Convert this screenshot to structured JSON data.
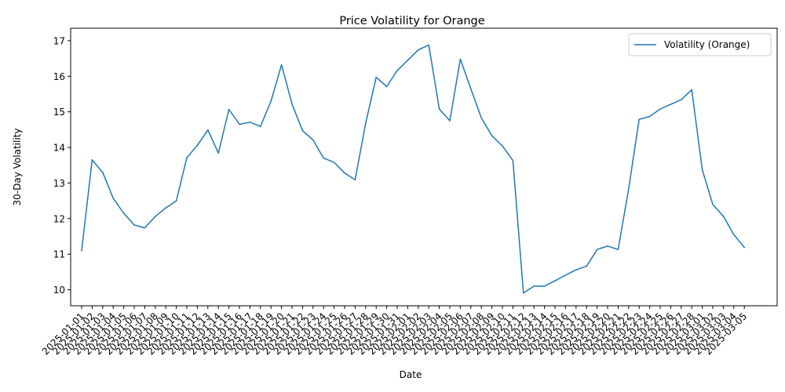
{
  "chart_data": {
    "type": "line",
    "title": "Price Volatility for Orange",
    "xlabel": "Date",
    "ylabel": "30-Day Volatility",
    "ylim": [
      9.55,
      17.35
    ],
    "yticks": [
      10,
      11,
      12,
      13,
      14,
      15,
      16,
      17
    ],
    "grid": false,
    "legend_position": "top-right",
    "x": [
      "2025-01-01",
      "2025-01-02",
      "2025-01-03",
      "2025-01-04",
      "2025-01-05",
      "2025-01-06",
      "2025-01-07",
      "2025-01-08",
      "2025-01-09",
      "2025-01-10",
      "2025-01-11",
      "2025-01-12",
      "2025-01-13",
      "2025-01-14",
      "2025-01-15",
      "2025-01-16",
      "2025-01-17",
      "2025-01-18",
      "2025-01-19",
      "2025-01-20",
      "2025-01-21",
      "2025-01-22",
      "2025-01-23",
      "2025-01-24",
      "2025-01-25",
      "2025-01-26",
      "2025-01-27",
      "2025-01-28",
      "2025-01-29",
      "2025-01-30",
      "2025-01-31",
      "2025-02-01",
      "2025-02-02",
      "2025-02-03",
      "2025-02-04",
      "2025-02-05",
      "2025-02-06",
      "2025-02-07",
      "2025-02-08",
      "2025-02-09",
      "2025-02-10",
      "2025-02-11",
      "2025-02-12",
      "2025-02-13",
      "2025-02-14",
      "2025-02-15",
      "2025-02-16",
      "2025-02-17",
      "2025-02-18",
      "2025-02-19",
      "2025-02-20",
      "2025-02-21",
      "2025-02-22",
      "2025-02-23",
      "2025-02-24",
      "2025-02-25",
      "2025-02-26",
      "2025-02-27",
      "2025-02-28",
      "2025-03-01",
      "2025-03-02",
      "2025-03-03",
      "2025-03-04",
      "2025-03-05"
    ],
    "series": [
      {
        "name": "Volatility (Orange)",
        "color": "#1f77b4",
        "values": [
          11.1,
          13.65,
          13.3,
          12.57,
          12.15,
          11.82,
          11.74,
          12.06,
          12.3,
          12.5,
          13.71,
          14.06,
          14.49,
          13.84,
          15.07,
          14.65,
          14.71,
          14.59,
          15.3,
          16.32,
          15.22,
          14.47,
          14.21,
          13.7,
          13.58,
          13.28,
          13.09,
          14.68,
          15.97,
          15.71,
          16.16,
          16.45,
          16.74,
          16.88,
          15.08,
          14.75,
          16.48,
          15.65,
          14.83,
          14.33,
          14.04,
          13.63,
          9.91,
          10.1,
          10.1,
          10.25,
          10.41,
          10.56,
          10.66,
          11.13,
          11.23,
          11.13,
          12.83,
          14.79,
          14.87,
          15.08,
          15.21,
          15.34,
          15.62,
          13.37,
          12.4,
          12.07,
          11.55,
          11.19
        ]
      }
    ]
  }
}
